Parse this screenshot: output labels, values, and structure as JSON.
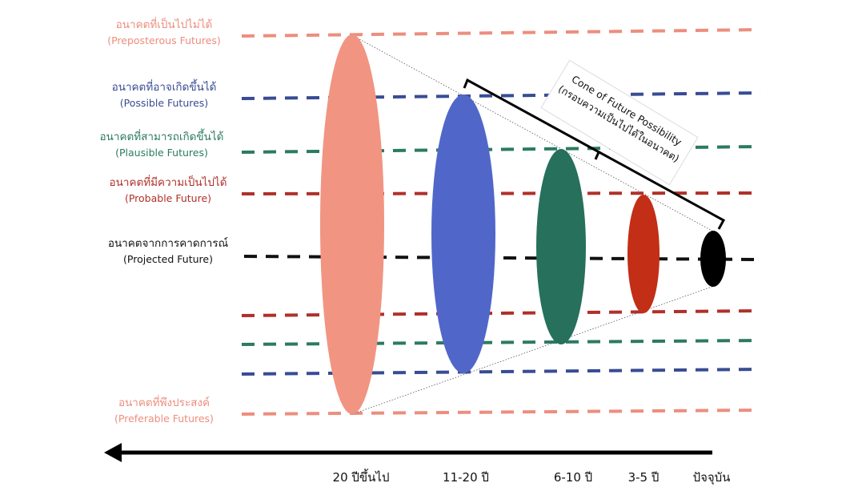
{
  "colors": {
    "preposterous": "#ec8e7e",
    "possible": "#384c94",
    "plausible": "#2c7a63",
    "probable": "#b0302a",
    "projected": "#111111",
    "preferable": "#ec8e7e",
    "ellipse_20plus": "#f29482",
    "ellipse_11_20": "#5067c9",
    "ellipse_6_10": "#26705c",
    "ellipse_3_5": "#c22e16",
    "ellipse_now": "#000000"
  },
  "futures": [
    {
      "key": "preposterous",
      "thai": "อนาคตที่เป็นไปไม่ได้",
      "english": "(Preposterous Futures)"
    },
    {
      "key": "possible",
      "thai": "อนาคตที่อาจเกิดขึ้นได้",
      "english": "(Possible Futures)"
    },
    {
      "key": "plausible",
      "thai": "อนาคตที่สามารถเกิดขึ้นได้",
      "english": "(Plausible Futures)"
    },
    {
      "key": "probable",
      "thai": "อนาคตที่มีความเป็นไปได้",
      "english": "(Probable Future)"
    },
    {
      "key": "projected",
      "thai": "อนาคตจากการคาดการณ์",
      "english": "(Projected Future)"
    },
    {
      "key": "preferable",
      "thai": "อนาคตที่พึงประสงค์",
      "english": "(Preferable Futures)"
    }
  ],
  "cone": {
    "title": "Cone of Future Possibility",
    "subtitle": "(กรอบความเป็นไปได้ในอนาคต)"
  },
  "timeline": {
    "ticks": [
      "20 ปีขึ้นไป",
      "11-20 ปี",
      "6-10 ปี",
      "3-5 ปี",
      "ปัจจุบัน"
    ],
    "arrow_direction": "left"
  },
  "icons": [
    "arrow-left-icon",
    "bracket-icon"
  ]
}
